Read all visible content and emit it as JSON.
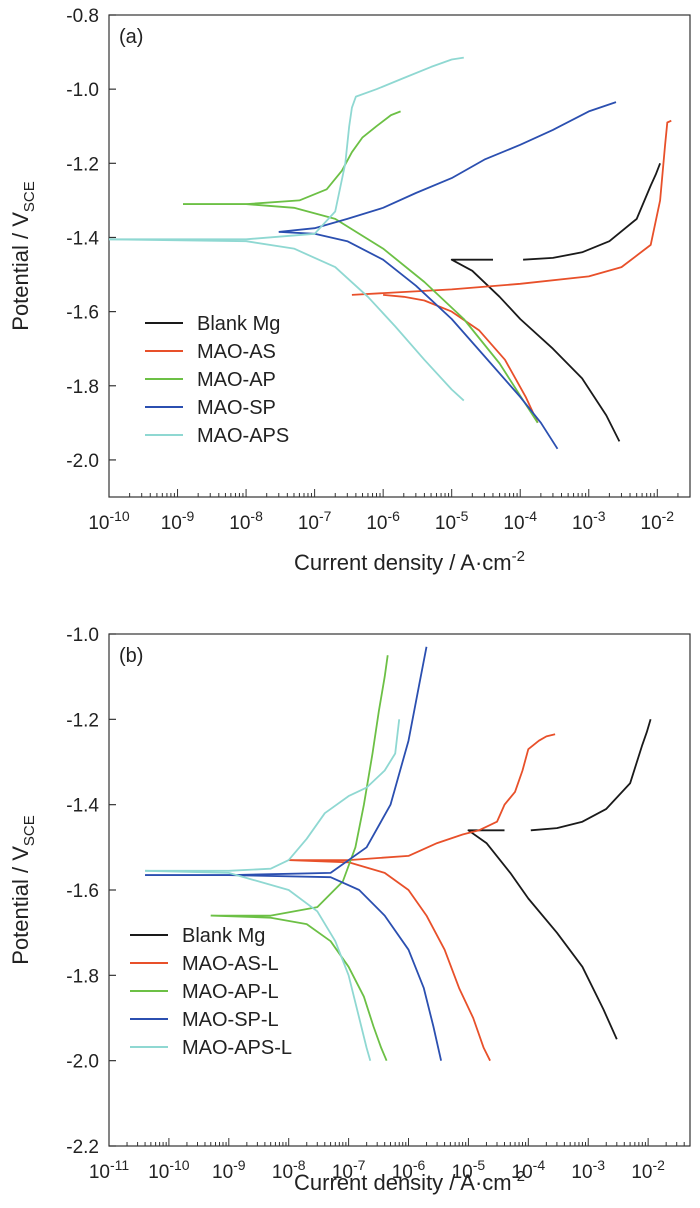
{
  "chart_data": [
    {
      "type": "line",
      "panel_label": "(a)",
      "xlabel": {
        "base": "Current density / A·cm",
        "sup": "-2"
      },
      "ylabel": {
        "base": "Potential / V",
        "sub": "SCE"
      },
      "x_scale": "log",
      "xlim": [
        1e-10,
        0.03
      ],
      "ylim": [
        -2.1,
        -0.8
      ],
      "x_ticks": [
        {
          "value": 1e-10,
          "base": "10",
          "exp": "-10"
        },
        {
          "value": 1e-09,
          "base": "10",
          "exp": "-9"
        },
        {
          "value": 1e-08,
          "base": "10",
          "exp": "-8"
        },
        {
          "value": 1e-07,
          "base": "10",
          "exp": "-7"
        },
        {
          "value": 1e-06,
          "base": "10",
          "exp": "-6"
        },
        {
          "value": 1e-05,
          "base": "10",
          "exp": "-5"
        },
        {
          "value": 0.0001,
          "base": "10",
          "exp": "-4"
        },
        {
          "value": 0.001,
          "base": "10",
          "exp": "-3"
        },
        {
          "value": 0.01,
          "base": "10",
          "exp": "-2"
        }
      ],
      "y_ticks": [
        {
          "value": -0.8,
          "label": "-0.8"
        },
        {
          "value": -1.0,
          "label": "-1.0"
        },
        {
          "value": -1.2,
          "label": "-1.2"
        },
        {
          "value": -1.4,
          "label": "-1.4"
        },
        {
          "value": -1.6,
          "label": "-1.6"
        },
        {
          "value": -1.8,
          "label": "-1.8"
        },
        {
          "value": -2.0,
          "label": "-2.0"
        }
      ],
      "legend_position": "bottom-left",
      "grid": false,
      "series": [
        {
          "name": "Blank Mg",
          "color": "#1a1a1a",
          "x": [
            0.00011,
            0.0003,
            0.0008,
            0.002,
            0.005,
            0.008,
            0.0095,
            0.011
          ],
          "y": [
            -1.46,
            -1.455,
            -1.44,
            -1.41,
            -1.35,
            -1.26,
            -1.23,
            -1.2
          ],
          "x2": [
            4e-05,
            1e-05,
            2e-05,
            5e-05,
            0.0001,
            0.0003,
            0.0008,
            0.0018,
            0.0028
          ],
          "y2": [
            -1.46,
            -1.46,
            -1.49,
            -1.56,
            -1.62,
            -1.7,
            -1.78,
            -1.88,
            -1.95
          ]
        },
        {
          "name": "MAO-AS",
          "color": "#e8502a",
          "x": [
            3.5e-07,
            1e-06,
            1e-05,
            0.0001,
            0.001,
            0.003,
            0.008,
            0.011,
            0.013,
            0.014,
            0.016
          ],
          "y": [
            -1.555,
            -1.55,
            -1.54,
            -1.525,
            -1.505,
            -1.48,
            -1.42,
            -1.3,
            -1.15,
            -1.09,
            -1.085
          ],
          "x2": [
            1e-06,
            2e-06,
            4e-06,
            1e-05,
            2.5e-05,
            6e-05,
            0.00012,
            0.00018
          ],
          "y2": [
            -1.555,
            -1.56,
            -1.57,
            -1.6,
            -1.65,
            -1.73,
            -1.83,
            -1.9
          ]
        },
        {
          "name": "MAO-AP",
          "color": "#6cc045",
          "x": [
            1.2e-09,
            1e-08,
            6e-08,
            1.5e-07,
            2.5e-07,
            3.5e-07,
            5e-07,
            8e-07,
            1.3e-06,
            1.8e-06
          ],
          "y": [
            -1.31,
            -1.31,
            -1.3,
            -1.27,
            -1.22,
            -1.17,
            -1.13,
            -1.1,
            -1.07,
            -1.06
          ],
          "x2": [
            1.2e-09,
            1e-08,
            5e-08,
            2e-07,
            1e-06,
            4e-06,
            1.5e-05,
            5e-05,
            0.00012,
            0.00018
          ],
          "y2": [
            -1.31,
            -1.31,
            -1.32,
            -1.35,
            -1.43,
            -1.52,
            -1.62,
            -1.74,
            -1.85,
            -1.9
          ]
        },
        {
          "name": "MAO-SP",
          "color": "#2b4fb0",
          "x": [
            3e-08,
            1e-07,
            3e-07,
            1e-06,
            3e-06,
            1e-05,
            3e-05,
            0.0001,
            0.0003,
            0.001,
            0.0025
          ],
          "y": [
            -1.385,
            -1.375,
            -1.35,
            -1.32,
            -1.28,
            -1.24,
            -1.19,
            -1.15,
            -1.11,
            -1.06,
            -1.035
          ],
          "x2": [
            3e-08,
            1e-07,
            3e-07,
            1e-06,
            3e-06,
            1e-05,
            3e-05,
            0.0001,
            0.0002,
            0.00035
          ],
          "y2": [
            -1.385,
            -1.39,
            -1.41,
            -1.46,
            -1.53,
            -1.62,
            -1.72,
            -1.83,
            -1.9,
            -1.97
          ]
        },
        {
          "name": "MAO-APS",
          "color": "#8fd8d2",
          "x": [
            1e-10,
            1e-08,
            1e-07,
            2e-07,
            2.8e-07,
            3.2e-07,
            3.5e-07,
            4e-07,
            8e-07,
            2e-06,
            5e-06,
            1e-05,
            1.5e-05
          ],
          "y": [
            -1.405,
            -1.405,
            -1.39,
            -1.33,
            -1.2,
            -1.1,
            -1.05,
            -1.02,
            -1.0,
            -0.97,
            -0.94,
            -0.92,
            -0.915
          ],
          "x2": [
            1e-10,
            1e-08,
            5e-08,
            2e-07,
            6e-07,
            1.5e-06,
            4e-06,
            1e-05,
            1.5e-05
          ],
          "y2": [
            -1.405,
            -1.41,
            -1.43,
            -1.48,
            -1.56,
            -1.64,
            -1.73,
            -1.81,
            -1.84
          ]
        }
      ]
    },
    {
      "type": "line",
      "panel_label": "(b)",
      "xlabel": {
        "base": "Current density / A·cm",
        "sup": "-2"
      },
      "ylabel": {
        "base": "Potential / V",
        "sub": "SCE"
      },
      "x_scale": "log",
      "xlim": [
        1e-11,
        0.05
      ],
      "ylim": [
        -2.2,
        -1.0
      ],
      "x_ticks": [
        {
          "value": 1e-11,
          "base": "10",
          "exp": "-11"
        },
        {
          "value": 1e-10,
          "base": "10",
          "exp": "-10"
        },
        {
          "value": 1e-09,
          "base": "10",
          "exp": "-9"
        },
        {
          "value": 1e-08,
          "base": "10",
          "exp": "-8"
        },
        {
          "value": 1e-07,
          "base": "10",
          "exp": "-7"
        },
        {
          "value": 1e-06,
          "base": "10",
          "exp": "-6"
        },
        {
          "value": 1e-05,
          "base": "10",
          "exp": "-5"
        },
        {
          "value": 0.0001,
          "base": "10",
          "exp": "-4"
        },
        {
          "value": 0.001,
          "base": "10",
          "exp": "-3"
        },
        {
          "value": 0.01,
          "base": "10",
          "exp": "-2"
        }
      ],
      "y_ticks": [
        {
          "value": -1.0,
          "label": "-1.0"
        },
        {
          "value": -1.2,
          "label": "-1.2"
        },
        {
          "value": -1.4,
          "label": "-1.4"
        },
        {
          "value": -1.6,
          "label": "-1.6"
        },
        {
          "value": -1.8,
          "label": "-1.8"
        },
        {
          "value": -2.0,
          "label": "-2.0"
        },
        {
          "value": -2.2,
          "label": "-2.2"
        }
      ],
      "legend_position": "bottom-left",
      "grid": false,
      "series": [
        {
          "name": "Blank Mg",
          "color": "#1a1a1a",
          "x": [
            0.00011,
            0.0003,
            0.0008,
            0.002,
            0.005,
            0.008,
            0.0095,
            0.011
          ],
          "y": [
            -1.46,
            -1.455,
            -1.44,
            -1.41,
            -1.35,
            -1.26,
            -1.23,
            -1.2
          ],
          "x2": [
            4e-05,
            1e-05,
            2e-05,
            5e-05,
            0.0001,
            0.0003,
            0.0008,
            0.0018,
            0.003
          ],
          "y2": [
            -1.46,
            -1.46,
            -1.49,
            -1.56,
            -1.62,
            -1.7,
            -1.78,
            -1.88,
            -1.95
          ]
        },
        {
          "name": "MAO-AS-L",
          "color": "#e8502a",
          "x": [
            1e-08,
            1e-07,
            1e-06,
            3e-06,
            8e-06,
            1.5e-05,
            3e-05,
            4e-05,
            6e-05,
            8e-05,
            0.0001,
            0.00015,
            0.0002,
            0.00028
          ],
          "y": [
            -1.53,
            -1.53,
            -1.52,
            -1.49,
            -1.47,
            -1.46,
            -1.44,
            -1.4,
            -1.37,
            -1.32,
            -1.27,
            -1.25,
            -1.24,
            -1.235
          ],
          "x2": [
            1e-08,
            1e-07,
            4e-07,
            1e-06,
            2e-06,
            4e-06,
            7e-06,
            1.2e-05,
            1.8e-05,
            2.3e-05
          ],
          "y2": [
            -1.53,
            -1.535,
            -1.56,
            -1.6,
            -1.66,
            -1.74,
            -1.83,
            -1.9,
            -1.97,
            -2.0
          ]
        },
        {
          "name": "MAO-AP-L",
          "color": "#6cc045",
          "x": [
            5e-10,
            5e-09,
            3e-08,
            8e-08,
            1.3e-07,
            1.8e-07,
            2.5e-07,
            3.2e-07,
            4e-07,
            4.5e-07
          ],
          "y": [
            -1.66,
            -1.66,
            -1.64,
            -1.58,
            -1.5,
            -1.4,
            -1.28,
            -1.18,
            -1.1,
            -1.05
          ],
          "x2": [
            5e-10,
            5e-09,
            2e-08,
            5e-08,
            1e-07,
            1.8e-07,
            2.6e-07,
            3.5e-07,
            4.3e-07
          ],
          "y2": [
            -1.66,
            -1.665,
            -1.68,
            -1.72,
            -1.78,
            -1.85,
            -1.92,
            -1.97,
            -2.0
          ]
        },
        {
          "name": "MAO-SP-L",
          "color": "#2b4fb0",
          "x": [
            4e-11,
            1e-10,
            1e-09,
            5e-08,
            2e-07,
            5e-07,
            1e-06,
            1.5e-06,
            2e-06
          ],
          "y": [
            -1.565,
            -1.565,
            -1.565,
            -1.56,
            -1.5,
            -1.4,
            -1.25,
            -1.12,
            -1.03
          ],
          "x2": [
            4e-11,
            1e-09,
            5e-08,
            1.5e-07,
            4e-07,
            1e-06,
            1.8e-06,
            2.6e-06,
            3.5e-06
          ],
          "y2": [
            -1.565,
            -1.565,
            -1.57,
            -1.6,
            -1.66,
            -1.74,
            -1.83,
            -1.92,
            -2.0
          ]
        },
        {
          "name": "MAO-APS-L",
          "color": "#8fd8d2",
          "x": [
            4e-11,
            1e-09,
            5e-09,
            1e-08,
            2e-08,
            4e-08,
            1e-07,
            2e-07,
            4e-07,
            6e-07,
            7e-07
          ],
          "y": [
            -1.555,
            -1.555,
            -1.55,
            -1.53,
            -1.48,
            -1.42,
            -1.38,
            -1.36,
            -1.32,
            -1.28,
            -1.2
          ],
          "x2": [
            4e-11,
            1e-09,
            1e-08,
            3e-08,
            6e-08,
            1e-07,
            1.5e-07,
            2e-07,
            2.3e-07
          ],
          "y2": [
            -1.555,
            -1.56,
            -1.6,
            -1.65,
            -1.72,
            -1.8,
            -1.9,
            -1.97,
            -2.0
          ]
        }
      ]
    }
  ]
}
